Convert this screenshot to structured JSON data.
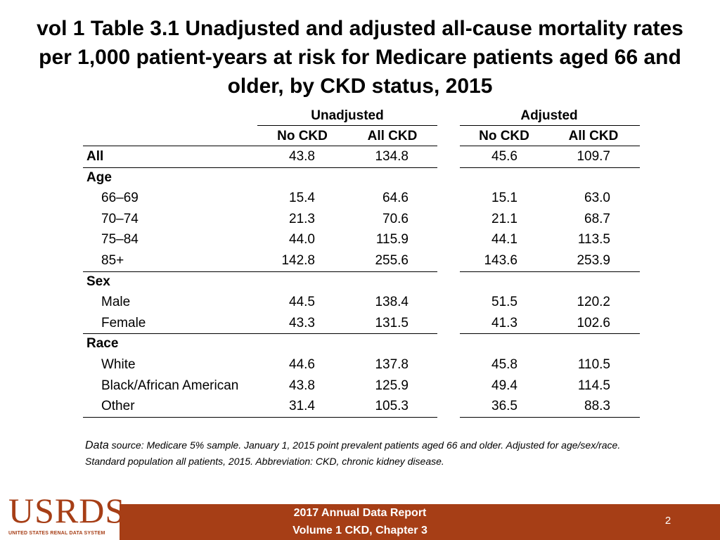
{
  "title": "vol 1 Table 3.1 Unadjusted and adjusted all-cause mortality rates per 1,000 patient-years at risk for Medicare patients aged 66 and older, by CKD status, 2015",
  "chart_data": {
    "type": "table",
    "group_headers": [
      "Unadjusted",
      "Adjusted"
    ],
    "columns": [
      "No CKD",
      "All CKD",
      "No CKD",
      "All CKD"
    ],
    "rows": [
      {
        "label": "All",
        "bold": true,
        "values": [
          "43.8",
          "134.8",
          "45.6",
          "109.7"
        ]
      },
      {
        "label": "Age",
        "bold": true,
        "values": []
      },
      {
        "label": "66–69",
        "values": [
          "15.4",
          "64.6",
          "15.1",
          "63.0"
        ]
      },
      {
        "label": "70–74",
        "values": [
          "21.3",
          "70.6",
          "21.1",
          "68.7"
        ]
      },
      {
        "label": "75–84",
        "values": [
          "44.0",
          "115.9",
          "44.1",
          "113.5"
        ]
      },
      {
        "label": "85+",
        "values": [
          "142.8",
          "255.6",
          "143.6",
          "253.9"
        ]
      },
      {
        "label": "Sex",
        "bold": true,
        "values": []
      },
      {
        "label": "Male",
        "values": [
          "44.5",
          "138.4",
          "51.5",
          "120.2"
        ]
      },
      {
        "label": "Female",
        "values": [
          "43.3",
          "131.5",
          "41.3",
          "102.6"
        ]
      },
      {
        "label": "Race",
        "bold": true,
        "values": []
      },
      {
        "label": "White",
        "values": [
          "44.6",
          "137.8",
          "45.8",
          "110.5"
        ]
      },
      {
        "label": "Black/African American",
        "values": [
          "43.8",
          "125.9",
          "49.4",
          "114.5"
        ]
      },
      {
        "label": "Other",
        "values": [
          "31.4",
          "105.3",
          "36.5",
          "88.3"
        ]
      }
    ]
  },
  "source": {
    "lead": "Data",
    "text": " source: Medicare 5% sample. January 1, 2015 point prevalent patients aged 66 and older. Adjusted for age/sex/race. Standard population all patients, 2015. Abbreviation: CKD, chronic kidney disease."
  },
  "footer": {
    "logo": "USRDS",
    "logo_sub": "UNITED STATES RENAL DATA SYSTEM",
    "report_line1": "2017 Annual Data Report",
    "report_line2": "Volume 1 CKD, Chapter 3",
    "page_number": "2"
  },
  "colors": {
    "footer_bg": "#a63e16",
    "logo": "#a63e16"
  }
}
